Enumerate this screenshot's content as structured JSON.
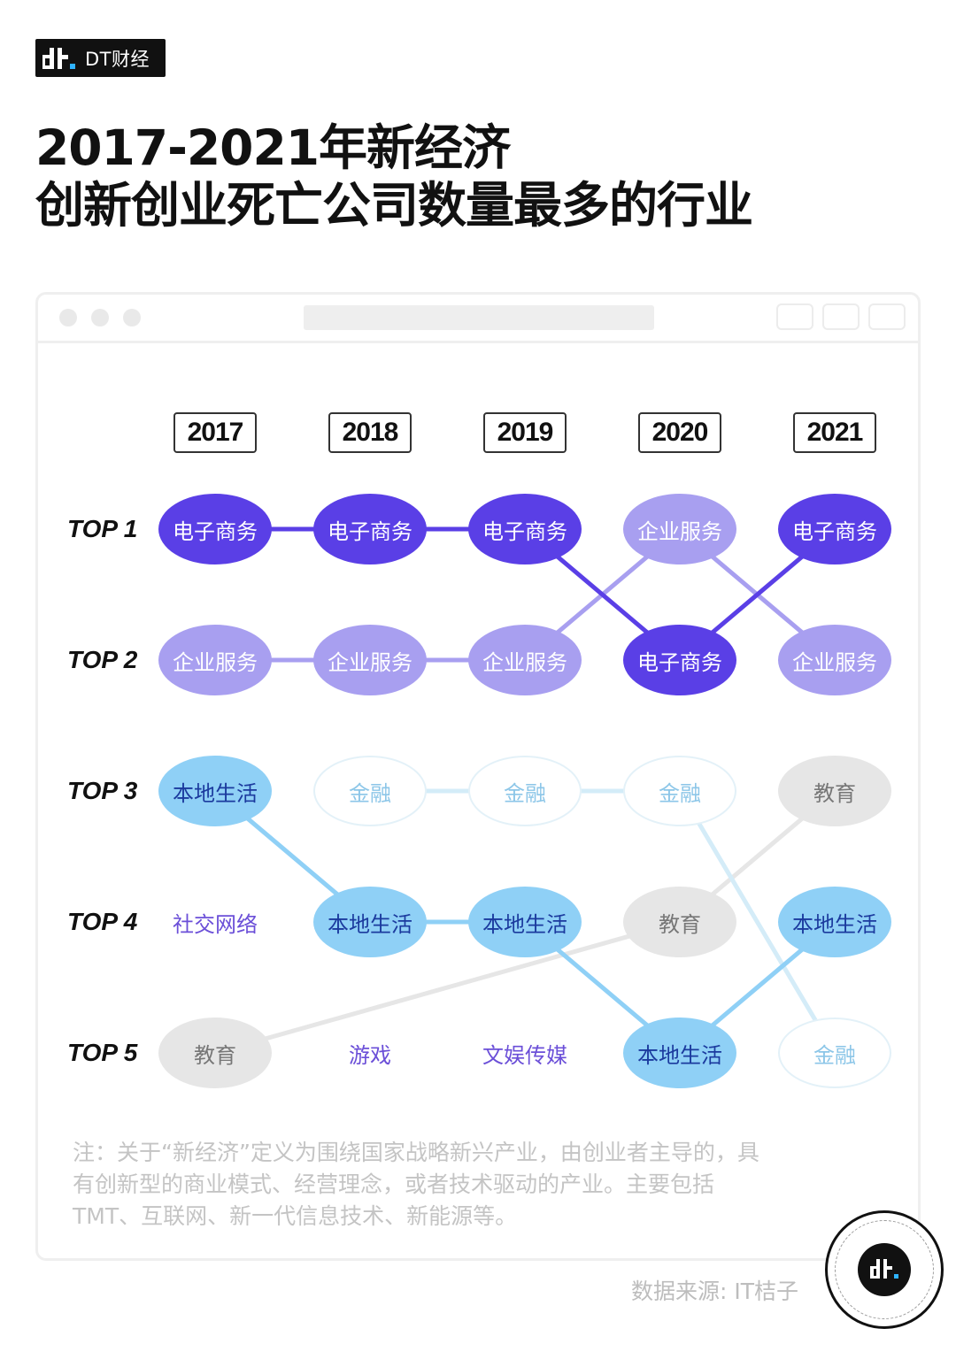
{
  "header": {
    "brand": "DT财经",
    "title_line1": "2017-2021年新经济",
    "title_line2": "创新创业死亡公司数量最多的行业"
  },
  "colors": {
    "ecommerce": "#5a3fe6",
    "enterprise": "#a89ff0",
    "local": "#8fd0f6",
    "finance": "#d4ecf8",
    "education": "#e6e6e6",
    "text_purple": "#6b4fd8"
  },
  "chart_data": {
    "type": "table",
    "title": "2017-2021年新经济创新创业死亡公司数量最多的行业",
    "columns": [
      "2017",
      "2018",
      "2019",
      "2020",
      "2021"
    ],
    "rows": [
      "TOP 1",
      "TOP 2",
      "TOP 3",
      "TOP 4",
      "TOP 5"
    ],
    "cells": [
      [
        "电子商务",
        "电子商务",
        "电子商务",
        "企业服务",
        "电子商务"
      ],
      [
        "企业服务",
        "企业服务",
        "企业服务",
        "电子商务",
        "企业服务"
      ],
      [
        "本地生活",
        "金融",
        "金融",
        "金融",
        "教育"
      ],
      [
        "社交网络",
        "本地生活",
        "本地生活",
        "教育",
        "本地生活"
      ],
      [
        "教育",
        "游戏",
        "文娱传媒",
        "本地生活",
        "金融"
      ]
    ],
    "category_styles": {
      "电子商务": "ec",
      "企业服务": "ent",
      "本地生活": "loc",
      "金融": "fin",
      "教育": "edu",
      "社交网络": "plain",
      "游戏": "plain",
      "文娱传媒": "plain"
    },
    "tracked_series": [
      {
        "category": "电子商务",
        "ranks": [
          1,
          1,
          1,
          2,
          1
        ],
        "color": "#5a3fe6"
      },
      {
        "category": "企业服务",
        "ranks": [
          2,
          2,
          2,
          1,
          2
        ],
        "color": "#a89ff0"
      },
      {
        "category": "本地生活",
        "ranks": [
          3,
          4,
          4,
          5,
          4
        ],
        "color": "#8fd0f6"
      },
      {
        "category": "金融",
        "ranks": [
          null,
          3,
          3,
          3,
          5
        ],
        "color": "#d4ecf8"
      },
      {
        "category": "教育",
        "ranks": [
          5,
          null,
          null,
          4,
          3
        ],
        "color": "#e6e6e6"
      }
    ]
  },
  "footer": {
    "note": "注：关于“新经济”定义为围绕国家战略新兴产业，由创业者主导的，具有创新型的商业模式、经营理念，或者技术驱动的产业。主要包括TMT、互联网、新一代信息技术、新能源等。",
    "source": "数据来源: IT桔子"
  }
}
